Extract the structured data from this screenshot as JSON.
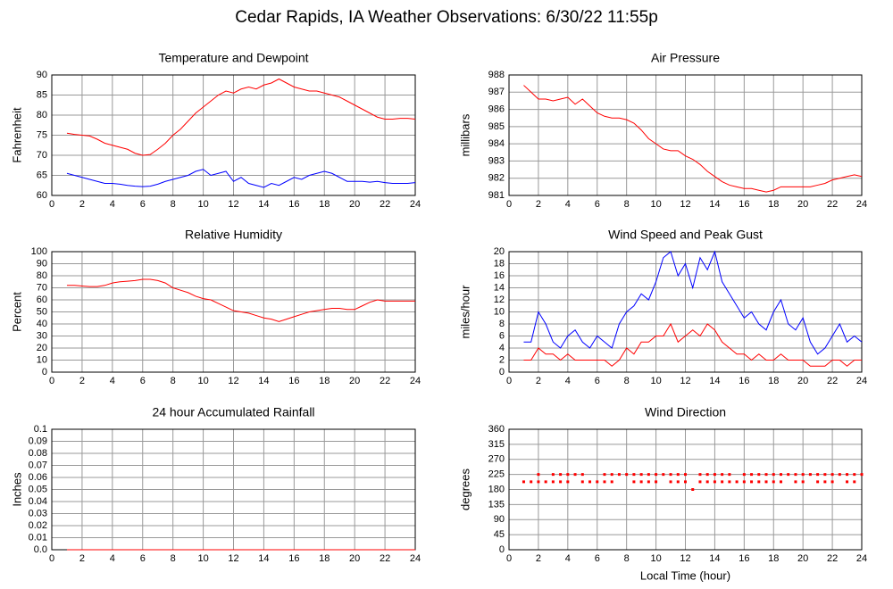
{
  "title": "Cedar Rapids, IA Weather Observations: 6/30/22 11:55p",
  "chart_data": [
    {
      "type": "line",
      "title": "Temperature and Dewpoint",
      "ylabel": "Fahrenheit",
      "x": [
        1,
        1.5,
        2,
        2.5,
        3,
        3.5,
        4,
        4.5,
        5,
        5.5,
        6,
        6.5,
        7,
        7.5,
        8,
        8.5,
        9,
        9.5,
        10,
        10.5,
        11,
        11.5,
        12,
        12.5,
        13,
        13.5,
        14,
        14.5,
        15,
        15.5,
        16,
        16.5,
        17,
        17.5,
        18,
        18.5,
        19,
        19.5,
        20,
        20.5,
        21,
        21.5,
        22,
        22.5,
        23,
        23.5,
        24
      ],
      "series": [
        {
          "color": "#ff0000",
          "values": [
            75.5,
            75.2,
            75,
            74.8,
            74,
            73,
            72.5,
            72,
            71.5,
            70.5,
            70,
            70.2,
            71.5,
            73,
            75,
            76.5,
            78.5,
            80.5,
            82,
            83.5,
            85,
            86,
            85.5,
            86.5,
            87,
            86.5,
            87.5,
            88,
            89,
            88,
            87,
            86.5,
            86,
            86,
            85.5,
            85,
            84.5,
            83.5,
            82.5,
            81.5,
            80.5,
            79.5,
            79,
            79,
            79.2,
            79.2,
            79
          ]
        },
        {
          "color": "#0000ff",
          "values": [
            65.5,
            65,
            64.5,
            64,
            63.5,
            63,
            63,
            62.8,
            62.5,
            62.3,
            62.2,
            62.3,
            62.8,
            63.5,
            64,
            64.5,
            65,
            66,
            66.5,
            65,
            65.5,
            66,
            63.5,
            64.5,
            63,
            62.5,
            62,
            63,
            62.5,
            63.5,
            64.5,
            64,
            65,
            65.5,
            66,
            65.5,
            64.5,
            63.5,
            63.5,
            63.5,
            63.3,
            63.5,
            63.2,
            63,
            63,
            63,
            63.2
          ]
        }
      ],
      "xlim": [
        0,
        24
      ],
      "xticks": [
        0,
        2,
        4,
        6,
        8,
        10,
        12,
        14,
        16,
        18,
        20,
        22,
        24
      ],
      "ylim": [
        60,
        90
      ],
      "yticks": [
        60,
        65,
        70,
        75,
        80,
        85,
        90
      ],
      "grid": true
    },
    {
      "type": "line",
      "title": "Air Pressure",
      "ylabel": "millibars",
      "x": [
        1,
        1.5,
        2,
        2.5,
        3,
        3.5,
        4,
        4.5,
        5,
        5.5,
        6,
        6.5,
        7,
        7.5,
        8,
        8.5,
        9,
        9.5,
        10,
        10.5,
        11,
        11.5,
        12,
        12.5,
        13,
        13.5,
        14,
        14.5,
        15,
        15.5,
        16,
        16.5,
        17,
        17.5,
        18,
        18.5,
        19,
        19.5,
        20,
        20.5,
        21,
        21.5,
        22,
        22.5,
        23,
        23.5,
        24
      ],
      "series": [
        {
          "color": "#ff0000",
          "values": [
            987.4,
            987,
            986.6,
            986.6,
            986.5,
            986.6,
            986.7,
            986.3,
            986.6,
            986.2,
            985.8,
            985.6,
            985.5,
            985.5,
            985.4,
            985.2,
            984.8,
            984.3,
            984,
            983.7,
            983.6,
            983.6,
            983.3,
            983.1,
            982.8,
            982.4,
            982.1,
            981.8,
            981.6,
            981.5,
            981.4,
            981.4,
            981.3,
            981.2,
            981.3,
            981.5,
            981.5,
            981.5,
            981.5,
            981.5,
            981.6,
            981.7,
            981.9,
            982,
            982.1,
            982.2,
            982.1
          ]
        }
      ],
      "xlim": [
        0,
        24
      ],
      "xticks": [
        0,
        2,
        4,
        6,
        8,
        10,
        12,
        14,
        16,
        18,
        20,
        22,
        24
      ],
      "ylim": [
        981,
        988
      ],
      "yticks": [
        981,
        982,
        983,
        984,
        985,
        986,
        987,
        988
      ],
      "grid": true
    },
    {
      "type": "line",
      "title": "Relative Humidity",
      "ylabel": "Percent",
      "x": [
        1,
        1.5,
        2,
        2.5,
        3,
        3.5,
        4,
        4.5,
        5,
        5.5,
        6,
        6.5,
        7,
        7.5,
        8,
        8.5,
        9,
        9.5,
        10,
        10.5,
        11,
        11.5,
        12,
        12.5,
        13,
        13.5,
        14,
        14.5,
        15,
        15.5,
        16,
        16.5,
        17,
        17.5,
        18,
        18.5,
        19,
        19.5,
        20,
        20.5,
        21,
        21.5,
        22,
        22.5,
        23,
        23.5,
        24
      ],
      "series": [
        {
          "color": "#ff0000",
          "values": [
            72,
            72,
            71.5,
            71,
            71,
            72,
            74,
            75,
            75.5,
            76,
            77,
            77,
            76,
            74,
            70,
            68,
            66,
            63,
            61,
            60,
            57,
            54,
            51,
            50,
            49,
            47,
            45,
            44,
            42,
            44,
            46,
            48,
            50,
            51,
            52,
            53,
            53,
            52,
            52,
            55,
            58,
            60,
            59,
            59,
            59,
            59,
            59
          ]
        }
      ],
      "xlim": [
        0,
        24
      ],
      "xticks": [
        0,
        2,
        4,
        6,
        8,
        10,
        12,
        14,
        16,
        18,
        20,
        22,
        24
      ],
      "ylim": [
        0,
        100
      ],
      "yticks": [
        0,
        10,
        20,
        30,
        40,
        50,
        60,
        70,
        80,
        90,
        100
      ],
      "grid": true
    },
    {
      "type": "line",
      "title": "Wind Speed and Peak Gust",
      "ylabel": "miles/hour",
      "x": [
        1,
        1.5,
        2,
        2.5,
        3,
        3.5,
        4,
        4.5,
        5,
        5.5,
        6,
        6.5,
        7,
        7.5,
        8,
        8.5,
        9,
        9.5,
        10,
        10.5,
        11,
        11.5,
        12,
        12.5,
        13,
        13.5,
        14,
        14.5,
        15,
        15.5,
        16,
        16.5,
        17,
        17.5,
        18,
        18.5,
        19,
        19.5,
        20,
        20.5,
        21,
        21.5,
        22,
        22.5,
        23,
        23.5,
        24
      ],
      "series": [
        {
          "color": "#0000ff",
          "values": [
            5,
            5,
            10,
            8,
            5,
            4,
            6,
            7,
            5,
            4,
            6,
            5,
            4,
            8,
            10,
            11,
            13,
            12,
            15,
            19,
            20,
            16,
            18,
            14,
            19,
            17,
            20,
            15,
            13,
            11,
            9,
            10,
            8,
            7,
            10,
            12,
            8,
            7,
            9,
            5,
            3,
            4,
            6,
            8,
            5,
            6,
            5
          ]
        },
        {
          "color": "#ff0000",
          "values": [
            2,
            2,
            4,
            3,
            3,
            2,
            3,
            2,
            2,
            2,
            2,
            2,
            1,
            2,
            4,
            3,
            5,
            5,
            6,
            6,
            8,
            5,
            6,
            7,
            6,
            8,
            7,
            5,
            4,
            3,
            3,
            2,
            3,
            2,
            2,
            3,
            2,
            2,
            2,
            1,
            1,
            1,
            2,
            2,
            1,
            2,
            2
          ]
        }
      ],
      "xlim": [
        0,
        24
      ],
      "xticks": [
        0,
        2,
        4,
        6,
        8,
        10,
        12,
        14,
        16,
        18,
        20,
        22,
        24
      ],
      "ylim": [
        0,
        20
      ],
      "yticks": [
        0,
        2,
        4,
        6,
        8,
        10,
        12,
        14,
        16,
        18,
        20
      ],
      "grid": true
    },
    {
      "type": "line",
      "title": "24 hour Accumulated Rainfall",
      "ylabel": "Inches",
      "x": [
        1,
        24
      ],
      "series": [
        {
          "color": "#ff0000",
          "values": [
            0,
            0
          ]
        }
      ],
      "xlim": [
        0,
        24
      ],
      "xticks": [
        0,
        2,
        4,
        6,
        8,
        10,
        12,
        14,
        16,
        18,
        20,
        22,
        24
      ],
      "ylim": [
        0,
        0.1
      ],
      "yticks": [
        {
          "value": 0,
          "label": "0.0"
        },
        0.01,
        0.02,
        0.03,
        0.04,
        0.05,
        0.06,
        0.07,
        0.08,
        0.09,
        0.1
      ],
      "grid": true
    },
    {
      "type": "scatter",
      "title": "Wind Direction",
      "ylabel": "degrees",
      "xlabel": "Local Time (hour)",
      "x": [
        1,
        1.5,
        2,
        2.5,
        3,
        3.5,
        4,
        4.5,
        5,
        5.5,
        6,
        6.5,
        7,
        7.5,
        8,
        8.5,
        9,
        9.5,
        10,
        10.5,
        11,
        11.5,
        12,
        12.5,
        13,
        13.5,
        14,
        14.5,
        15,
        15.5,
        16,
        16.5,
        17,
        17.5,
        18,
        18.5,
        19,
        19.5,
        20,
        20.5,
        21,
        21.5,
        22,
        22.5,
        23,
        23.5,
        24
      ],
      "series": [
        {
          "color": "#ff0000",
          "values": [
            null,
            null,
            225,
            null,
            225,
            225,
            225,
            225,
            225,
            null,
            null,
            225,
            225,
            225,
            225,
            225,
            225,
            225,
            225,
            225,
            225,
            225,
            225,
            null,
            225,
            225,
            225,
            225,
            225,
            null,
            225,
            225,
            225,
            225,
            225,
            225,
            225,
            225,
            225,
            225,
            225,
            225,
            225,
            225,
            225,
            225,
            225
          ]
        },
        {
          "color": "#ff0000",
          "values": [
            203,
            203,
            203,
            203,
            203,
            203,
            203,
            null,
            203,
            203,
            203,
            203,
            203,
            null,
            null,
            203,
            203,
            203,
            203,
            null,
            203,
            203,
            203,
            180,
            203,
            203,
            203,
            203,
            203,
            203,
            203,
            203,
            203,
            203,
            203,
            203,
            null,
            203,
            203,
            null,
            203,
            203,
            203,
            null,
            203,
            203,
            null
          ]
        }
      ],
      "xlim": [
        0,
        24
      ],
      "xticks": [
        0,
        2,
        4,
        6,
        8,
        10,
        12,
        14,
        16,
        18,
        20,
        22,
        24
      ],
      "ylim": [
        0,
        360
      ],
      "yticks": [
        0,
        45,
        90,
        135,
        180,
        225,
        270,
        315,
        360
      ],
      "grid": true
    }
  ]
}
